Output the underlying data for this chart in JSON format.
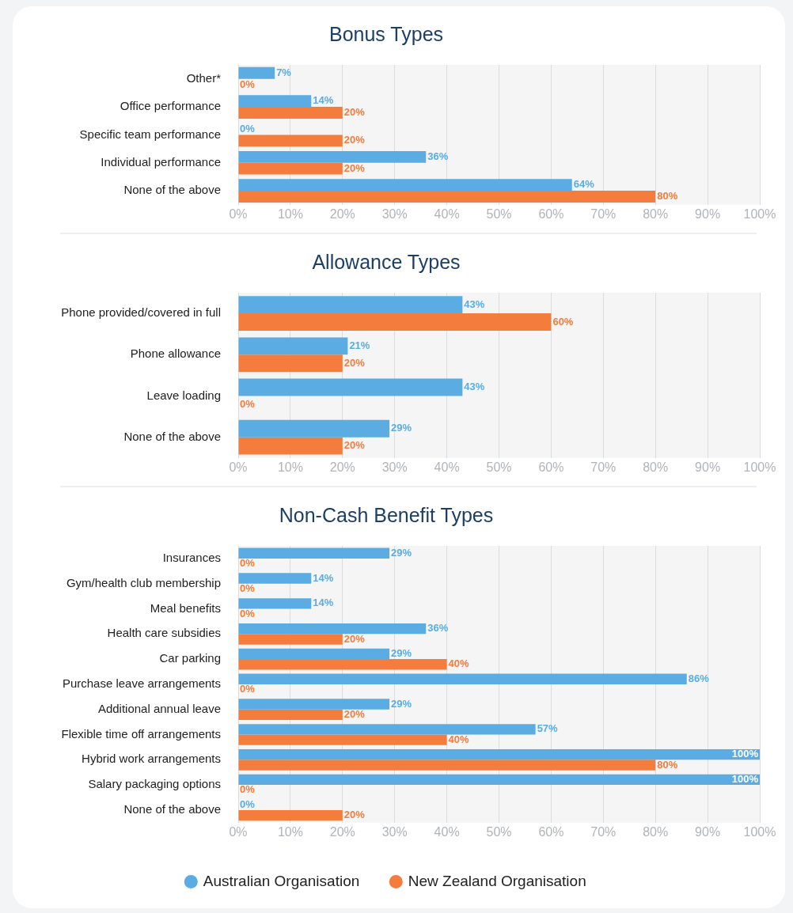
{
  "chart_data": [
    {
      "type": "bar",
      "orientation": "horizontal",
      "title": "Bonus Types",
      "categories": [
        "Other*",
        "Office performance",
        "Specific team performance",
        "Individual performance",
        "None of the above"
      ],
      "series": [
        {
          "color": "#5aace2",
          "values": [
            7,
            14,
            0,
            36,
            64
          ],
          "value_labels": [
            "7%",
            "14%",
            "0%",
            "36%",
            "64%"
          ]
        },
        {
          "color": "#f47c3d",
          "values": [
            0,
            20,
            20,
            20,
            80
          ],
          "value_labels": [
            "0%",
            "20%",
            "20%",
            "20%",
            "80%"
          ]
        }
      ],
      "xlim": [
        0,
        100
      ],
      "xticks": [
        {
          "value": 0,
          "label": "0%"
        },
        {
          "value": 10,
          "label": "10%"
        },
        {
          "value": 20,
          "label": "20%"
        },
        {
          "value": 30,
          "label": "30%"
        },
        {
          "value": 40,
          "label": "40%"
        },
        {
          "value": 50,
          "label": "50%"
        },
        {
          "value": 60,
          "label": "60%"
        },
        {
          "value": 70,
          "label": "70%"
        },
        {
          "value": 80,
          "label": "80%"
        },
        {
          "value": 90,
          "label": "90%"
        },
        {
          "value": 100,
          "label": "100%"
        }
      ],
      "grid": "x",
      "legend": false
    },
    {
      "type": "bar",
      "orientation": "horizontal",
      "title": "Allowance Types",
      "categories": [
        "Phone provided/covered in full",
        "Phone allowance",
        "Leave loading",
        "None of the above"
      ],
      "series": [
        {
          "color": "#5aace2",
          "values": [
            43,
            21,
            43,
            29
          ],
          "value_labels": [
            "43%",
            "21%",
            "43%",
            "29%"
          ]
        },
        {
          "color": "#f47c3d",
          "values": [
            60,
            20,
            0,
            20
          ],
          "value_labels": [
            "60%",
            "20%",
            "0%",
            "20%"
          ]
        }
      ],
      "xlim": [
        0,
        100
      ],
      "xticks": [
        {
          "value": 0,
          "label": "0%"
        },
        {
          "value": 10,
          "label": "10%"
        },
        {
          "value": 20,
          "label": "20%"
        },
        {
          "value": 30,
          "label": "30%"
        },
        {
          "value": 40,
          "label": "40%"
        },
        {
          "value": 50,
          "label": "50%"
        },
        {
          "value": 60,
          "label": "60%"
        },
        {
          "value": 70,
          "label": "70%"
        },
        {
          "value": 80,
          "label": "80%"
        },
        {
          "value": 90,
          "label": "90%"
        },
        {
          "value": 100,
          "label": "100%"
        }
      ],
      "grid": "x",
      "legend": false
    },
    {
      "type": "bar",
      "orientation": "horizontal",
      "title": "Non-Cash Benefit Types",
      "categories": [
        "Insurances",
        "Gym/health club membership",
        "Meal benefits",
        "Health care subsidies",
        "Car parking",
        "Purchase leave arrangements",
        "Additional annual leave",
        "Flexible time off arrangements",
        "Hybrid work arrangements",
        "Salary packaging options",
        "None of the above"
      ],
      "series": [
        {
          "name": "Australian Organisation",
          "color": "#5aace2",
          "values": [
            29,
            14,
            14,
            36,
            29,
            86,
            29,
            57,
            100,
            100,
            0
          ],
          "value_labels": [
            "29%",
            "14%",
            "14%",
            "36%",
            "29%",
            "86%",
            "29%",
            "57%",
            "100%",
            "100%",
            "0%"
          ]
        },
        {
          "name": "New Zealand Organisation",
          "color": "#f47c3d",
          "values": [
            0,
            0,
            0,
            20,
            40,
            0,
            20,
            40,
            80,
            0,
            20
          ],
          "value_labels": [
            "0%",
            "0%",
            "0%",
            "20%",
            "40%",
            "0%",
            "20%",
            "40%",
            "80%",
            "0%",
            "20%"
          ]
        }
      ],
      "xlim": [
        0,
        100
      ],
      "xticks": [
        {
          "value": 0,
          "label": "0%"
        },
        {
          "value": 10,
          "label": "10%"
        },
        {
          "value": 20,
          "label": "20%"
        },
        {
          "value": 30,
          "label": "30%"
        },
        {
          "value": 40,
          "label": "40%"
        },
        {
          "value": 50,
          "label": "50%"
        },
        {
          "value": 60,
          "label": "60%"
        },
        {
          "value": 70,
          "label": "70%"
        },
        {
          "value": 80,
          "label": "80%"
        },
        {
          "value": 90,
          "label": "90%"
        },
        {
          "value": 100,
          "label": "100%"
        }
      ],
      "grid": "x",
      "legend": "bottom"
    }
  ]
}
